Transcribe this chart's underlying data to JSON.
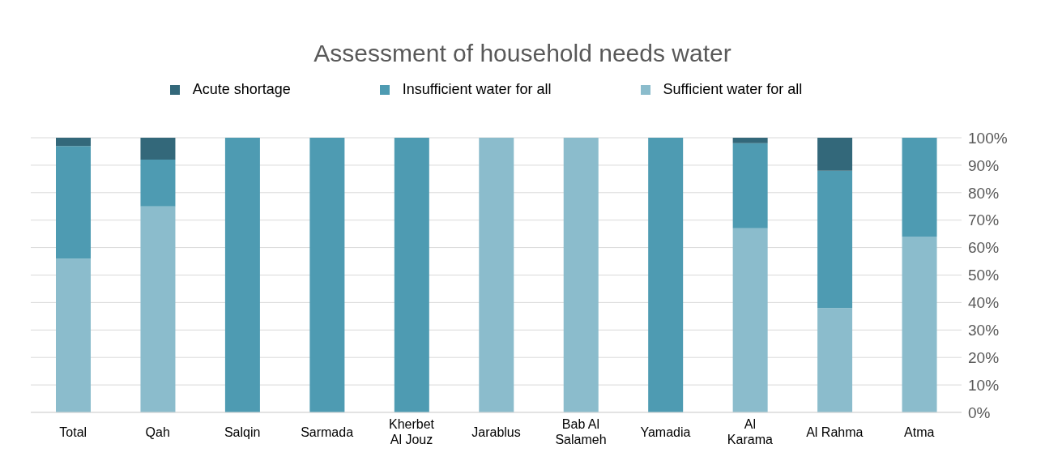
{
  "chart_data": {
    "type": "bar",
    "title": "Assessment of household needs water",
    "stacked": true,
    "categories": [
      "Total",
      "Qah",
      "Salqin",
      "Sarmada",
      "Kherbet Al Jouz",
      "Jarablus",
      "Bab Al Salameh",
      "Yamadia",
      "Al Karama",
      "Al Rahma",
      "Atma"
    ],
    "series": [
      {
        "name": "Sufficient water for all",
        "color": "#8bbccc",
        "values": [
          56,
          75,
          0,
          0,
          0,
          100,
          100,
          0,
          67,
          38,
          64
        ]
      },
      {
        "name": "Insufficient water for all",
        "color": "#4e9bb2",
        "values": [
          41,
          17,
          100,
          100,
          100,
          0,
          0,
          100,
          31,
          50,
          36
        ]
      },
      {
        "name": "Acute shortage",
        "color": "#33687a",
        "values": [
          3,
          8,
          0,
          0,
          0,
          0,
          0,
          0,
          2,
          12,
          0
        ]
      }
    ],
    "ylim": [
      0,
      100
    ],
    "yticks": [
      {
        "value": 0,
        "label": "0%"
      },
      {
        "value": 10,
        "label": "10%"
      },
      {
        "value": 20,
        "label": "20%"
      },
      {
        "value": 30,
        "label": "30%"
      },
      {
        "value": 40,
        "label": "40%"
      },
      {
        "value": 50,
        "label": "50%"
      },
      {
        "value": 60,
        "label": "60%"
      },
      {
        "value": 70,
        "label": "70%"
      },
      {
        "value": 80,
        "label": "80%"
      },
      {
        "value": 90,
        "label": "90%"
      },
      {
        "value": 100,
        "label": "100%"
      }
    ],
    "grid": "y",
    "legend": "top"
  }
}
